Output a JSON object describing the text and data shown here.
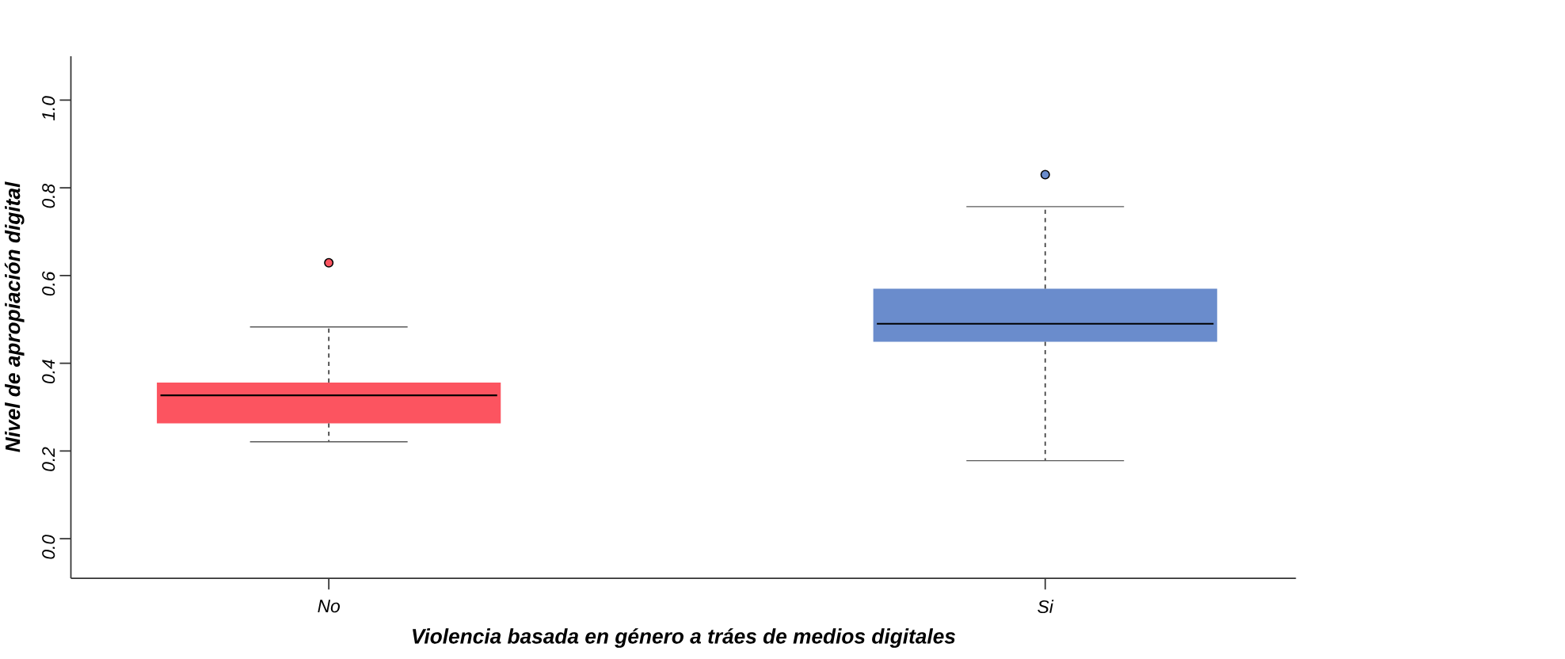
{
  "chart_data": {
    "type": "box",
    "xlabel": "Violencia basada en género a tráes de medios digitales",
    "ylabel": "Nivel de apropiación digital",
    "categories": [
      "No",
      "Si"
    ],
    "colors": [
      "#fc5460",
      "#6a8ccc"
    ],
    "boxes": [
      {
        "low": 0.221,
        "q1": 0.263,
        "median": 0.327,
        "q3": 0.356,
        "high": 0.483,
        "outliers": [
          0.629
        ]
      },
      {
        "low": 0.178,
        "q1": 0.449,
        "median": 0.49,
        "q3": 0.57,
        "high": 0.757,
        "outliers": [
          0.83
        ]
      }
    ],
    "ylim": [
      -0.09,
      1.1
    ],
    "yticks": [
      {
        "value": 0,
        "label": "0.0"
      },
      0.2,
      0.4,
      0.6,
      0.8,
      {
        "value": 1,
        "label": "1.0"
      }
    ]
  }
}
